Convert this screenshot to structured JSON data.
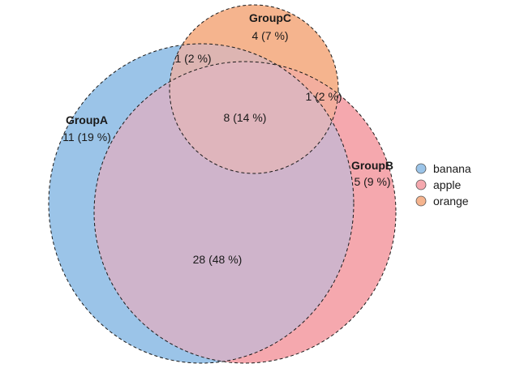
{
  "colors": {
    "groupA_fill": "#9BC4E8",
    "groupB_fill": "#F5A8AE",
    "groupC_fill": "#F5B48E",
    "ab_overlap": "#CFB4CB",
    "ac_overlap": "#DDB5B2",
    "bc_overlap": "#F3AE9E",
    "abc_overlap": "#DFB5BC"
  },
  "sets": {
    "groupA": {
      "name": "GroupA",
      "count": "11 (19 %)"
    },
    "groupB": {
      "name": "GroupB",
      "count": "5 (9 %)"
    },
    "groupC": {
      "name": "GroupC",
      "count": "4 (7 %)"
    }
  },
  "intersections": {
    "ab": "28 (48 %)",
    "ac": "1 (2 %)",
    "bc": "1 (2 %)",
    "abc": "8 (14 %)"
  },
  "legend": [
    {
      "label": "banana",
      "color": "#9BC4E8"
    },
    {
      "label": "apple",
      "color": "#F5A8AE"
    },
    {
      "label": "orange",
      "color": "#F5B48E"
    }
  ]
}
